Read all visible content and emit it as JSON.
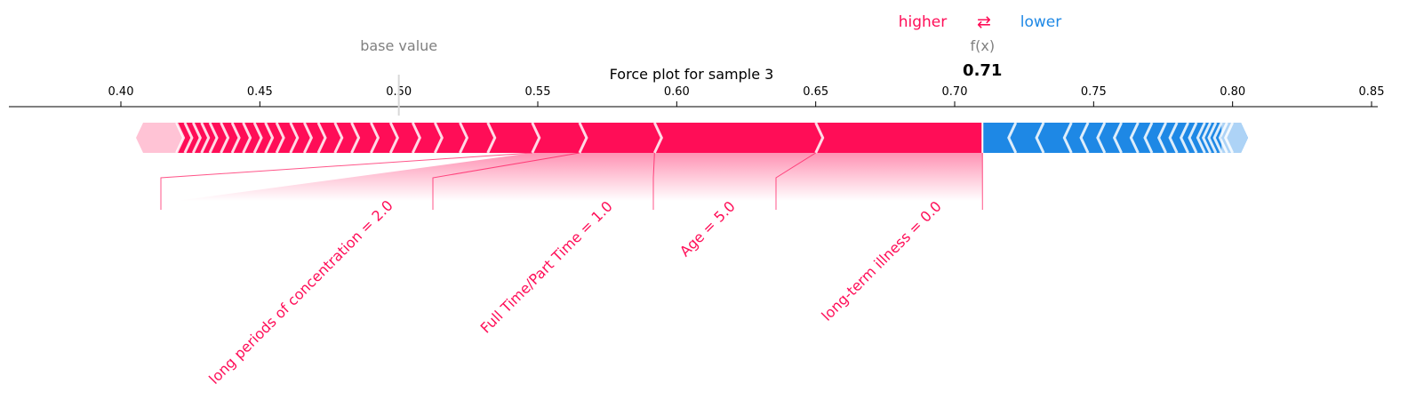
{
  "chart_data": {
    "type": "force",
    "title": "Force plot for sample 3",
    "legend": {
      "higher": "higher",
      "arrows": "⇄",
      "lower": "lower"
    },
    "base_value": {
      "label": "base value",
      "value": 0.5
    },
    "output": {
      "label": "f(x)",
      "value": 0.71,
      "display": "0.71"
    },
    "xlim": [
      0.36,
      0.85
    ],
    "ticks": [
      0.4,
      0.45,
      0.5,
      0.55,
      0.6,
      0.65,
      0.7,
      0.75,
      0.8,
      0.85
    ],
    "tick_labels": [
      "0.40",
      "0.45",
      "0.50",
      "0.55",
      "0.60",
      "0.65",
      "0.70",
      "0.75",
      "0.80",
      "0.85"
    ],
    "colors": {
      "positive": "#ff0d57",
      "negative": "#1e88e5",
      "positive_light": "#ffc3d5",
      "negative_light": "#d1e6fa",
      "neutral": "#808080",
      "text": "#000000"
    },
    "positive_range": [
      0.408,
      0.71
    ],
    "negative_range": [
      0.71,
      0.803
    ],
    "positive_features": [
      {
        "label": "long periods of concentration = 2.0",
        "start": 0.548,
        "end": 0.565
      },
      {
        "label": "Full Time/Part Time = 1.0",
        "start": 0.565,
        "end": 0.592
      },
      {
        "label": "Age = 5.0",
        "start": 0.592,
        "end": 0.65
      },
      {
        "label": "long-term illness = 0.0",
        "start": 0.65,
        "end": 0.71
      }
    ],
    "positive_small_boundaries": [
      0.42,
      0.423,
      0.426,
      0.429,
      0.432,
      0.436,
      0.44,
      0.444,
      0.448,
      0.452,
      0.456,
      0.461,
      0.466,
      0.471,
      0.477,
      0.483,
      0.49,
      0.497,
      0.505,
      0.513,
      0.522,
      0.532,
      0.548
    ],
    "negative_boundaries": [
      0.722,
      0.732,
      0.742,
      0.748,
      0.754,
      0.76,
      0.766,
      0.771,
      0.776,
      0.78,
      0.784,
      0.787,
      0.79,
      0.792,
      0.794,
      0.796,
      0.798,
      0.8
    ]
  }
}
